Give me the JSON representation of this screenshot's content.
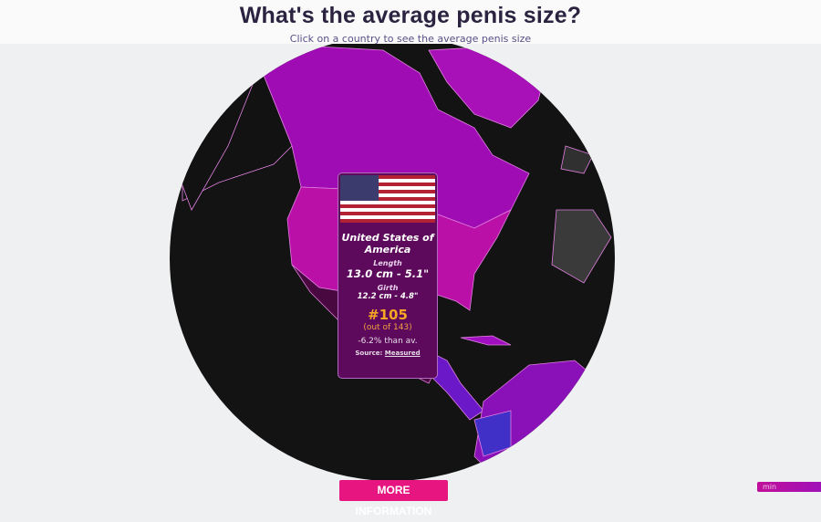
{
  "header": {
    "title": "What's the average penis size?",
    "subtitle": "Click on a country to see the average penis size"
  },
  "card": {
    "country": "United States of America",
    "flag_icon": "us-flag-icon",
    "length_label": "Length",
    "length_value": "13.0 cm - 5.1\"",
    "girth_label": "Girth",
    "girth_value": "12.2 cm - 4.8\"",
    "rank": "#105",
    "out_of": "(out of 143)",
    "diff": "-6.2% than av.",
    "source_label": "Source:",
    "source_link": "Measured"
  },
  "more_button": "MORE INFORMATION",
  "legend": {
    "min_label": "min"
  },
  "colors": {
    "accent": "#e6157f",
    "globe": "#121212",
    "country_high": "#c010b0",
    "country_mid": "#9a10b8",
    "card_bg": "#5e0a5c",
    "rank": "#f5a623"
  }
}
